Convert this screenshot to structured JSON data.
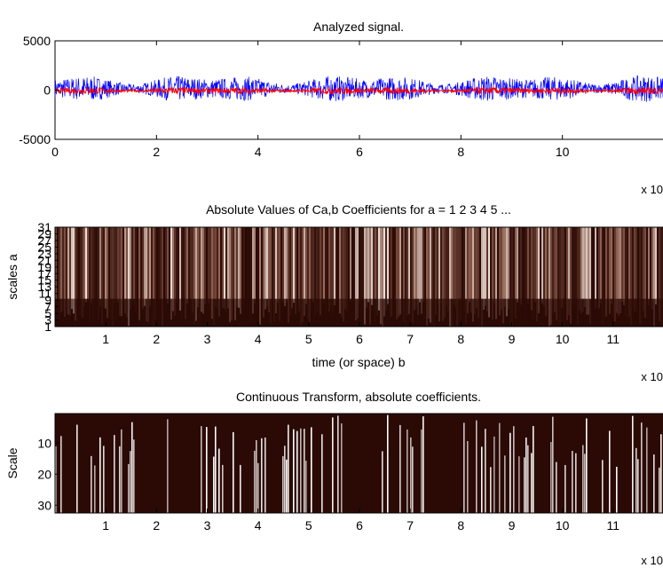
{
  "chart_data": [
    {
      "type": "line",
      "title": "Analyzed signal.",
      "xlabel": "",
      "ylabel": "",
      "xlim": [
        0,
        12
      ],
      "ylim": [
        -5000,
        5000
      ],
      "x_ticks": [
        "0",
        "2",
        "4",
        "6",
        "8",
        "10"
      ],
      "y_ticks": [
        "5000",
        "0",
        "-5000"
      ],
      "x_exponent_label": "x 10",
      "series": [
        {
          "color": "#0000ff",
          "description_of_shape": "noisy signal centred at 0, amplitude roughly ±1500",
          "approx_amplitude": 1500
        },
        {
          "color": "#ff0000",
          "description_of_shape": "low-amplitude trace centred at 0",
          "approx_amplitude": 400
        }
      ]
    },
    {
      "type": "heatmap",
      "title": "Absolute Values of Ca,b Coefficients for a =  1 2 3 4 5 ...",
      "xlabel": "time (or space) b",
      "ylabel": "scales a",
      "x_ticks": [
        "1",
        "2",
        "3",
        "4",
        "5",
        "6",
        "7",
        "8",
        "9",
        "10",
        "11"
      ],
      "y_ticks": [
        "1",
        "3",
        "5",
        "7",
        "9",
        "11",
        "13",
        "15",
        "17",
        "19",
        "21",
        "23",
        "25",
        "27",
        "29",
        "31"
      ],
      "x_exponent_label": "x 10",
      "colormap": [
        "#2b0a05",
        "#8a5a4a",
        "#f6eee6"
      ]
    },
    {
      "type": "heatmap",
      "title": "Continuous Transform, absolute coefficients.",
      "xlabel": "",
      "ylabel": "Scale",
      "x_ticks": [
        "1",
        "2",
        "3",
        "4",
        "5",
        "6",
        "7",
        "8",
        "9",
        "10",
        "11"
      ],
      "y_ticks": [
        "10",
        "20",
        "30"
      ],
      "x_exponent_label": "x 10",
      "colormap": [
        "#2b0a05",
        "#ffffff"
      ]
    }
  ]
}
